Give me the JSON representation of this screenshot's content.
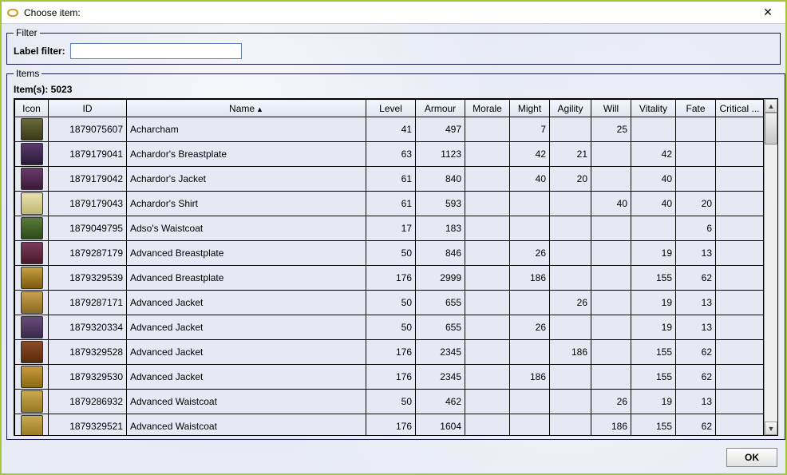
{
  "window": {
    "title": "Choose item:"
  },
  "filter": {
    "legend": "Filter",
    "label": "Label filter:",
    "value": ""
  },
  "items": {
    "legend": "Items",
    "count_label": "Item(s): 5023",
    "columns": [
      "Icon",
      "ID",
      "Name",
      "Level",
      "Armour",
      "Morale",
      "Might",
      "Agility",
      "Will",
      "Vitality",
      "Fate",
      "Critical ..."
    ],
    "sort_col": "Name",
    "sort_dir": "asc",
    "rows": [
      {
        "icon_bg": "linear-gradient(#6a6a3a,#3a3a1a)",
        "id": "1879075607",
        "name": "Acharcham",
        "level": "41",
        "armour": "497",
        "morale": "",
        "might": "7",
        "agility": "",
        "will": "25",
        "vitality": "",
        "fate": "",
        "crit": ""
      },
      {
        "icon_bg": "linear-gradient(#5a3a6a,#2a1a3a)",
        "id": "1879179041",
        "name": "Achardor's Breastplate",
        "level": "63",
        "armour": "1123",
        "morale": "",
        "might": "42",
        "agility": "21",
        "will": "",
        "vitality": "42",
        "fate": "",
        "crit": ""
      },
      {
        "icon_bg": "linear-gradient(#6a3a6a,#3a1a3a)",
        "id": "1879179042",
        "name": "Achardor's Jacket",
        "level": "61",
        "armour": "840",
        "morale": "",
        "might": "40",
        "agility": "20",
        "will": "",
        "vitality": "40",
        "fate": "",
        "crit": ""
      },
      {
        "icon_bg": "linear-gradient(#e8e0b0,#c0b870)",
        "id": "1879179043",
        "name": "Achardor's Shirt",
        "level": "61",
        "armour": "593",
        "morale": "",
        "might": "",
        "agility": "",
        "will": "40",
        "vitality": "40",
        "fate": "20",
        "crit": ""
      },
      {
        "icon_bg": "linear-gradient(#5a7a3a,#2a4a1a)",
        "id": "1879049795",
        "name": "Adso's Waistcoat",
        "level": "17",
        "armour": "183",
        "morale": "",
        "might": "",
        "agility": "",
        "will": "",
        "vitality": "",
        "fate": "6",
        "crit": ""
      },
      {
        "icon_bg": "linear-gradient(#7a3a5a,#4a1a2a)",
        "id": "1879287179",
        "name": "Advanced Breastplate",
        "level": "50",
        "armour": "846",
        "morale": "",
        "might": "26",
        "agility": "",
        "will": "",
        "vitality": "19",
        "fate": "13",
        "crit": ""
      },
      {
        "icon_bg": "linear-gradient(#c8a040,#7a5a10)",
        "id": "1879329539",
        "name": "Advanced Breastplate",
        "level": "176",
        "armour": "2999",
        "morale": "",
        "might": "186",
        "agility": "",
        "will": "",
        "vitality": "155",
        "fate": "62",
        "crit": ""
      },
      {
        "icon_bg": "linear-gradient(#c8a050,#8a6a20)",
        "id": "1879287171",
        "name": "Advanced Jacket",
        "level": "50",
        "armour": "655",
        "morale": "",
        "might": "",
        "agility": "26",
        "will": "",
        "vitality": "19",
        "fate": "13",
        "crit": ""
      },
      {
        "icon_bg": "linear-gradient(#6a4a7a,#3a2a4a)",
        "id": "1879320334",
        "name": "Advanced Jacket",
        "level": "50",
        "armour": "655",
        "morale": "",
        "might": "26",
        "agility": "",
        "will": "",
        "vitality": "19",
        "fate": "13",
        "crit": ""
      },
      {
        "icon_bg": "linear-gradient(#8a4a2a,#5a2a0a)",
        "id": "1879329528",
        "name": "Advanced Jacket",
        "level": "176",
        "armour": "2345",
        "morale": "",
        "might": "",
        "agility": "186",
        "will": "",
        "vitality": "155",
        "fate": "62",
        "crit": ""
      },
      {
        "icon_bg": "linear-gradient(#c89a40,#8a6a10)",
        "id": "1879329530",
        "name": "Advanced Jacket",
        "level": "176",
        "armour": "2345",
        "morale": "",
        "might": "186",
        "agility": "",
        "will": "",
        "vitality": "155",
        "fate": "62",
        "crit": ""
      },
      {
        "icon_bg": "linear-gradient(#c8a850,#9a7a20)",
        "id": "1879286932",
        "name": "Advanced Waistcoat",
        "level": "50",
        "armour": "462",
        "morale": "",
        "might": "",
        "agility": "",
        "will": "26",
        "vitality": "19",
        "fate": "13",
        "crit": ""
      },
      {
        "icon_bg": "linear-gradient(#c8a850,#9a7a20)",
        "id": "1879329521",
        "name": "Advanced Waistcoat",
        "level": "176",
        "armour": "1604",
        "morale": "",
        "might": "",
        "agility": "",
        "will": "186",
        "vitality": "155",
        "fate": "62",
        "crit": ""
      }
    ]
  },
  "buttons": {
    "ok": "OK"
  }
}
